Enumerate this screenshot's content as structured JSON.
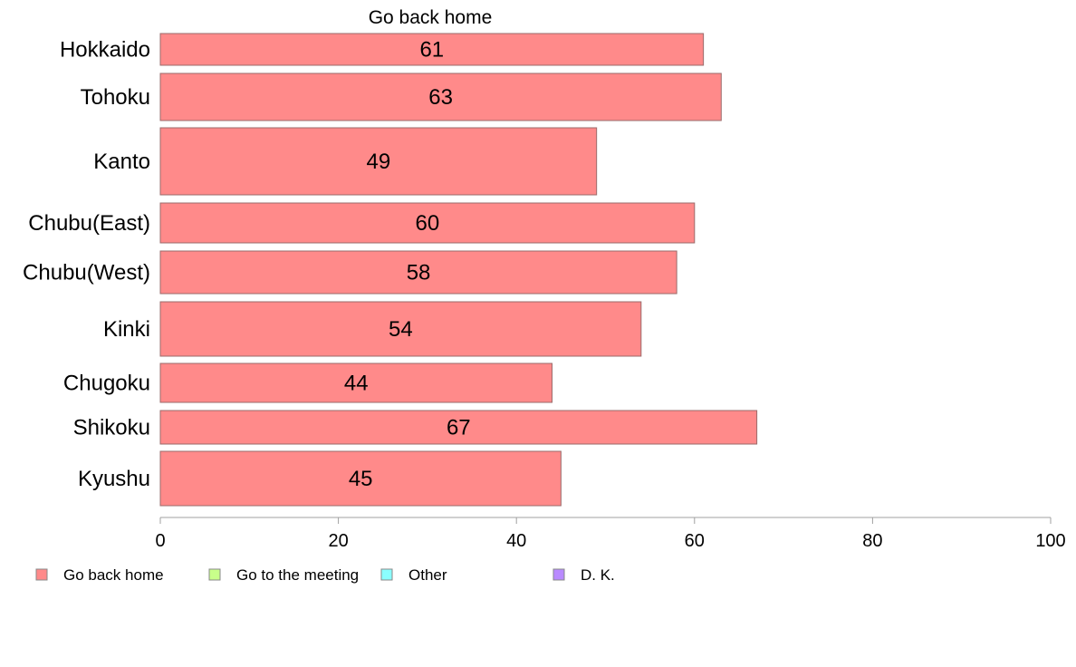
{
  "chart_data": {
    "type": "bar",
    "orientation": "horizontal",
    "title": "Go back home",
    "categories": [
      "Hokkaido",
      "Tohoku",
      "Kanto",
      "Chubu(East)",
      "Chubu(West)",
      "Kinki",
      "Chugoku",
      "Shikoku",
      "Kyushu"
    ],
    "series": [
      {
        "name": "Go back home",
        "values": [
          61,
          63,
          49,
          60,
          58,
          54,
          44,
          67,
          45
        ],
        "color": "#ff8a8a"
      }
    ],
    "xlim": [
      0,
      100
    ],
    "xticks": [
      "0",
      "20",
      "40",
      "60",
      "80",
      "100"
    ],
    "grid": false,
    "legend": {
      "placement": "bottom-left",
      "entries": [
        {
          "name": "Go back home",
          "color": "#ff8a8a"
        },
        {
          "name": "Go to the meeting",
          "color": "#c8ff8a"
        },
        {
          "name": "Other",
          "color": "#8affff"
        },
        {
          "name": "D. K.",
          "color": "#b98aff"
        }
      ]
    }
  }
}
